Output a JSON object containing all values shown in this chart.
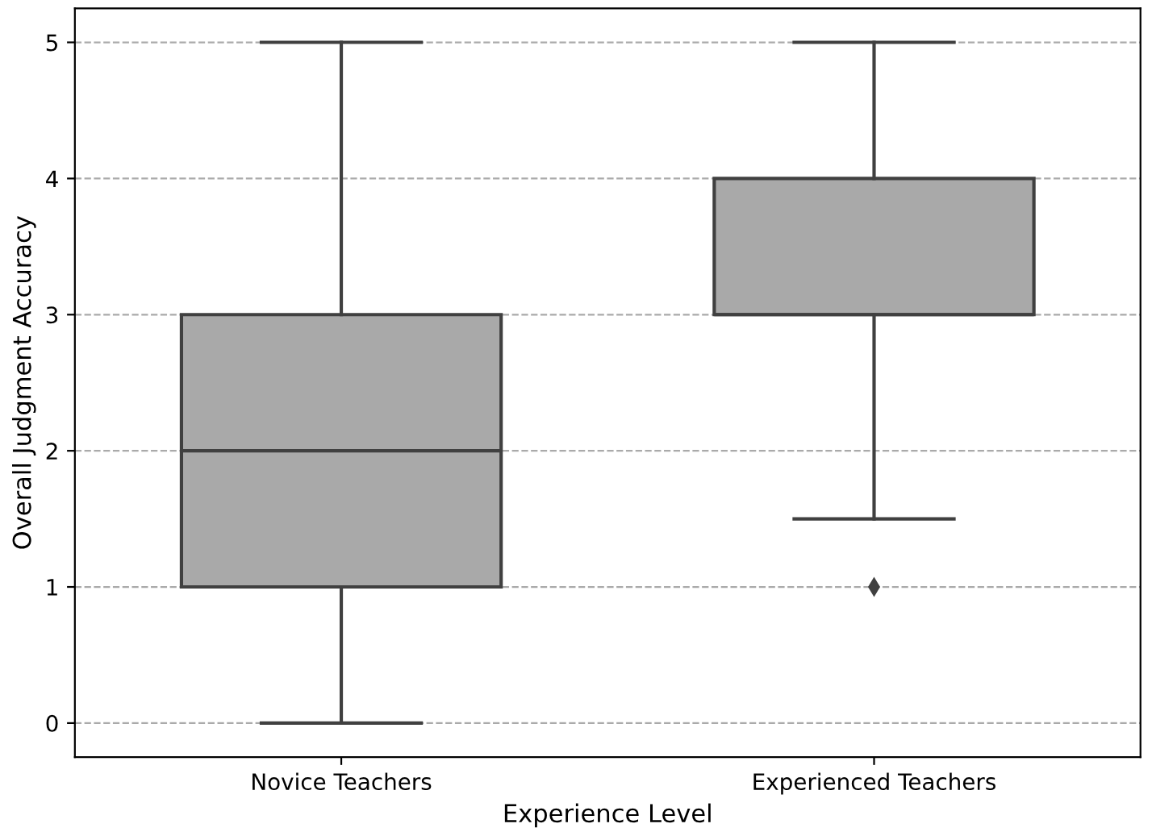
{
  "chart_data": {
    "type": "box",
    "xlabel": "Experience Level",
    "ylabel": "Overall Judgment Accuracy",
    "categories": [
      "Novice Teachers",
      "Experienced Teachers"
    ],
    "boxes": [
      {
        "low": 0,
        "q1": 1,
        "median": 2,
        "q3": 3,
        "high": 5
      },
      {
        "low": 1.5,
        "q1": 3,
        "median": 3,
        "q3": 4,
        "high": 5,
        "outliers": [
          1
        ]
      }
    ],
    "color": "#a9a9a9",
    "ylim": [
      -0.25,
      5.25
    ],
    "yticks": [
      0,
      1,
      2,
      3,
      4,
      5
    ],
    "grid": "y",
    "line_style": "dashed"
  }
}
